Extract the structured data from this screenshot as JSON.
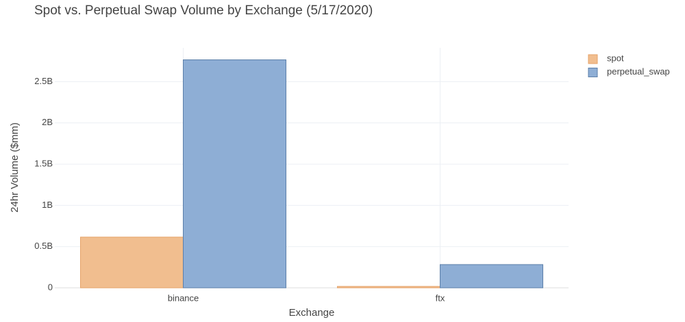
{
  "chart_data": {
    "type": "bar",
    "title": "Spot vs. Perpetual Swap Volume by Exchange (5/17/2020)",
    "x_label": "Exchange",
    "y_label": "24hr Volume ($mm)",
    "categories": [
      "binance",
      "ftx"
    ],
    "series": [
      {
        "name": "spot",
        "color": "#f1be8f",
        "edgecolor": "#e5a36a",
        "values": [
          615000000,
          17000000
        ]
      },
      {
        "name": "perpetual_swap",
        "color": "#8eaed5",
        "edgecolor": "#5c7fa9",
        "values": [
          2765000000,
          282000000
        ]
      }
    ],
    "ylim": [
      0,
      2910000000
    ],
    "yticks": [
      0,
      {
        "value": 500000000,
        "label": "0.5B"
      },
      {
        "value": 1000000000,
        "label": "1B"
      },
      {
        "value": 1500000000,
        "label": "1.5B"
      },
      {
        "value": 2000000000,
        "label": "2B"
      },
      {
        "value": 2500000000,
        "label": "2.5B"
      }
    ],
    "grid": true,
    "legend": "right"
  }
}
